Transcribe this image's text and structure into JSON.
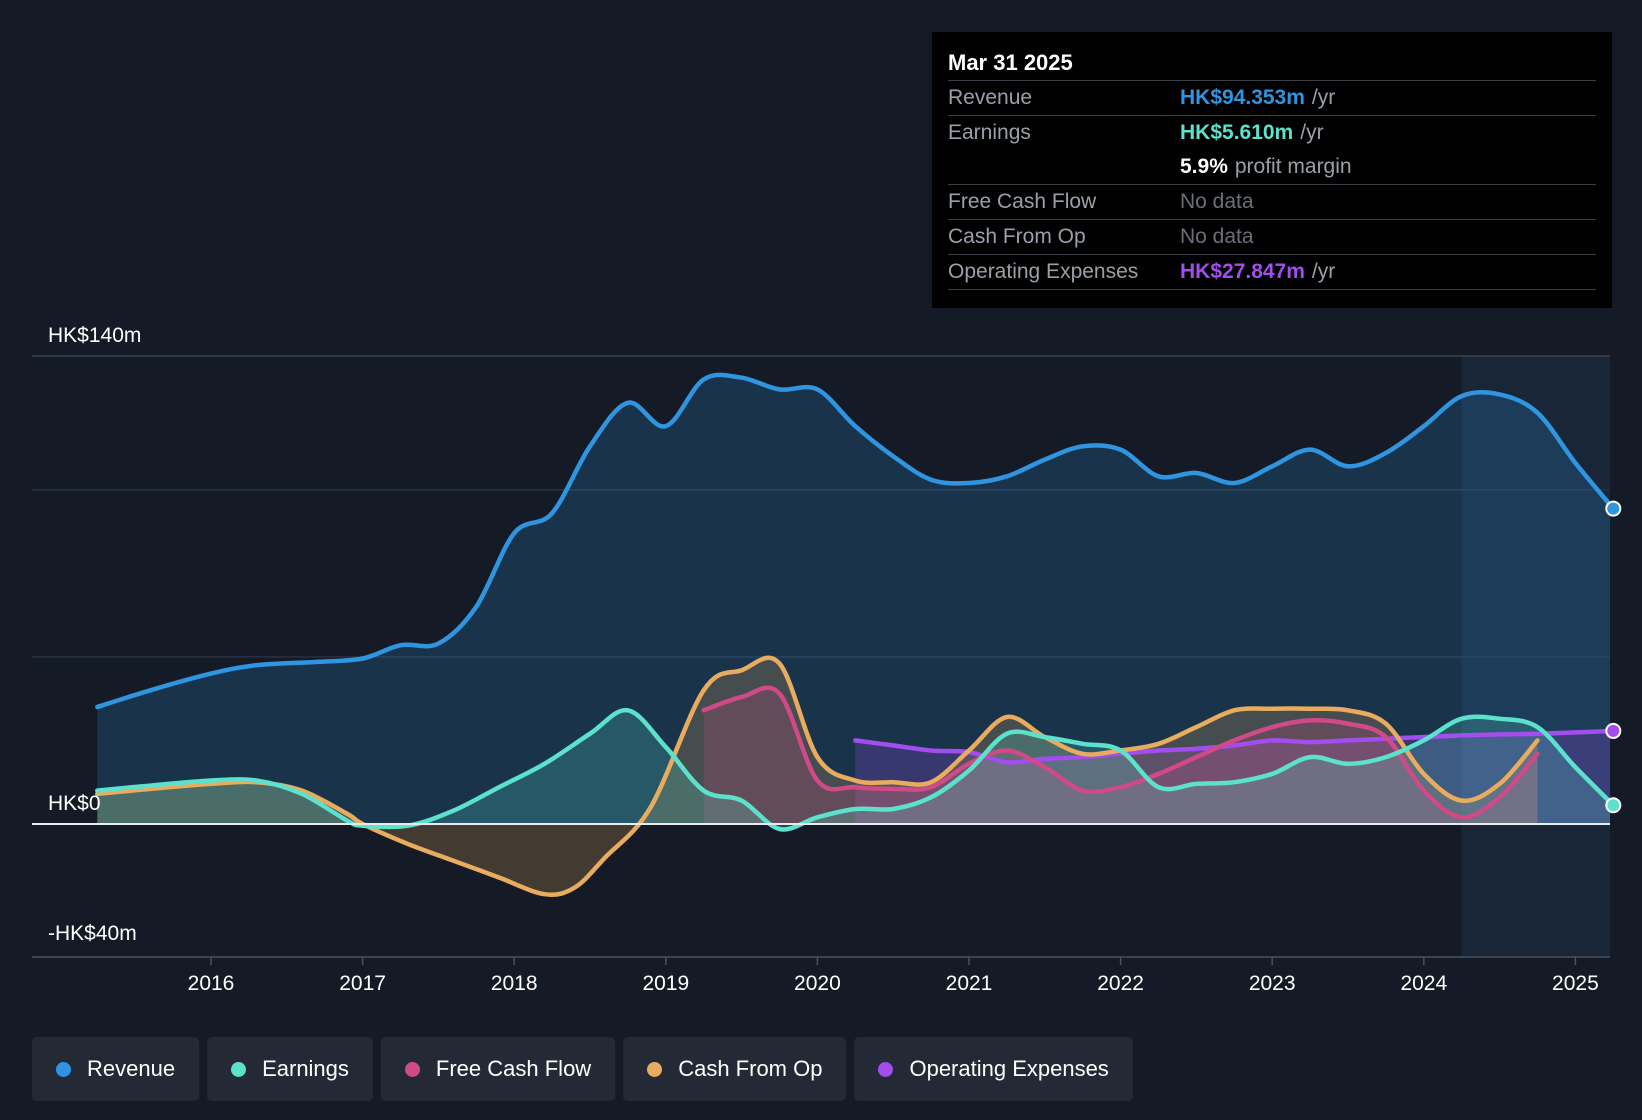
{
  "chart_data": {
    "type": "line",
    "y_unit": "HK$m",
    "ylim": [
      -40,
      140
    ],
    "y_tick_labels": [
      {
        "value": 140,
        "label": "HK$140m"
      },
      {
        "value": 0,
        "label": "HK$0"
      },
      {
        "value": -40,
        "label": "-HK$40m"
      }
    ],
    "gridlines": [
      140,
      100,
      50,
      0
    ],
    "xlim": [
      2015.0,
      2025.25
    ],
    "x_tick_labels": [
      "2016",
      "2017",
      "2018",
      "2019",
      "2020",
      "2021",
      "2022",
      "2023",
      "2024",
      "2025"
    ],
    "highlight_from": 2024.25,
    "series": [
      {
        "name": "Revenue",
        "color": "#2f95e0",
        "fill": true,
        "points": [
          [
            2015.25,
            35
          ],
          [
            2015.6,
            40
          ],
          [
            2016.0,
            45
          ],
          [
            2016.3,
            47.5
          ],
          [
            2016.7,
            48.5
          ],
          [
            2017.0,
            49.5
          ],
          [
            2017.25,
            53.5
          ],
          [
            2017.5,
            54
          ],
          [
            2017.75,
            65
          ],
          [
            2018.0,
            87
          ],
          [
            2018.25,
            93
          ],
          [
            2018.5,
            113
          ],
          [
            2018.75,
            126
          ],
          [
            2019.0,
            119
          ],
          [
            2019.25,
            133
          ],
          [
            2019.5,
            133.5
          ],
          [
            2019.75,
            130
          ],
          [
            2020.0,
            130
          ],
          [
            2020.25,
            119
          ],
          [
            2020.5,
            110
          ],
          [
            2020.75,
            103
          ],
          [
            2021.0,
            102
          ],
          [
            2021.25,
            104
          ],
          [
            2021.5,
            109
          ],
          [
            2021.75,
            113
          ],
          [
            2022.0,
            112
          ],
          [
            2022.25,
            104
          ],
          [
            2022.5,
            105
          ],
          [
            2022.75,
            102
          ],
          [
            2023.0,
            107
          ],
          [
            2023.25,
            112
          ],
          [
            2023.5,
            107
          ],
          [
            2023.75,
            111
          ],
          [
            2024.0,
            119
          ],
          [
            2024.25,
            128
          ],
          [
            2024.5,
            128.5
          ],
          [
            2024.75,
            123
          ],
          [
            2025.0,
            108
          ],
          [
            2025.25,
            94.353
          ]
        ]
      },
      {
        "name": "Earnings",
        "color": "#5ce1cd",
        "fill": true,
        "points": [
          [
            2015.25,
            10
          ],
          [
            2015.6,
            11.5
          ],
          [
            2016.0,
            13
          ],
          [
            2016.3,
            13
          ],
          [
            2016.6,
            9
          ],
          [
            2016.9,
            1
          ],
          [
            2017.0,
            -0.5
          ],
          [
            2017.3,
            -0.5
          ],
          [
            2017.6,
            4
          ],
          [
            2017.9,
            11
          ],
          [
            2018.2,
            18
          ],
          [
            2018.5,
            27
          ],
          [
            2018.75,
            34
          ],
          [
            2019.0,
            23
          ],
          [
            2019.25,
            10
          ],
          [
            2019.5,
            7
          ],
          [
            2019.75,
            -1.5
          ],
          [
            2020.0,
            2
          ],
          [
            2020.25,
            4.5
          ],
          [
            2020.5,
            4.5
          ],
          [
            2020.75,
            8
          ],
          [
            2021.0,
            16
          ],
          [
            2021.25,
            27
          ],
          [
            2021.5,
            26
          ],
          [
            2021.75,
            24
          ],
          [
            2022.0,
            22
          ],
          [
            2022.25,
            11
          ],
          [
            2022.5,
            12
          ],
          [
            2022.75,
            12.5
          ],
          [
            2023.0,
            15
          ],
          [
            2023.25,
            20
          ],
          [
            2023.5,
            18
          ],
          [
            2023.75,
            20
          ],
          [
            2024.0,
            25
          ],
          [
            2024.25,
            31.5
          ],
          [
            2024.5,
            31.5
          ],
          [
            2024.75,
            29
          ],
          [
            2025.0,
            17
          ],
          [
            2025.25,
            5.61
          ]
        ]
      },
      {
        "name": "Free Cash Flow",
        "color": "#cf4a86",
        "fill": true,
        "points": [
          [
            2019.25,
            34
          ],
          [
            2019.5,
            38
          ],
          [
            2019.75,
            39
          ],
          [
            2020.0,
            13
          ],
          [
            2020.25,
            11
          ],
          [
            2020.5,
            10.5
          ],
          [
            2020.75,
            11
          ],
          [
            2021.0,
            18
          ],
          [
            2021.25,
            22
          ],
          [
            2021.5,
            17
          ],
          [
            2021.75,
            10
          ],
          [
            2022.0,
            11
          ],
          [
            2022.25,
            15
          ],
          [
            2022.5,
            20
          ],
          [
            2022.75,
            25
          ],
          [
            2023.0,
            29
          ],
          [
            2023.25,
            31
          ],
          [
            2023.5,
            30
          ],
          [
            2023.75,
            26
          ],
          [
            2024.0,
            10
          ],
          [
            2024.25,
            2
          ],
          [
            2024.5,
            8
          ],
          [
            2024.75,
            21
          ]
        ]
      },
      {
        "name": "Cash From Op",
        "color": "#e9ac5e",
        "fill": true,
        "points": [
          [
            2015.25,
            9
          ],
          [
            2015.6,
            10.5
          ],
          [
            2016.0,
            12
          ],
          [
            2016.3,
            12.5
          ],
          [
            2016.6,
            10
          ],
          [
            2016.9,
            3
          ],
          [
            2017.0,
            0
          ],
          [
            2017.3,
            -6
          ],
          [
            2017.6,
            -11
          ],
          [
            2017.9,
            -16
          ],
          [
            2018.2,
            -21
          ],
          [
            2018.4,
            -19
          ],
          [
            2018.6,
            -10
          ],
          [
            2018.9,
            5
          ],
          [
            2019.25,
            40
          ],
          [
            2019.5,
            46
          ],
          [
            2019.75,
            48
          ],
          [
            2020.0,
            20
          ],
          [
            2020.25,
            13
          ],
          [
            2020.5,
            12.5
          ],
          [
            2020.75,
            12.5
          ],
          [
            2021.0,
            22
          ],
          [
            2021.25,
            32
          ],
          [
            2021.5,
            26
          ],
          [
            2021.75,
            21
          ],
          [
            2022.0,
            22
          ],
          [
            2022.25,
            24
          ],
          [
            2022.5,
            29
          ],
          [
            2022.75,
            34
          ],
          [
            2023.0,
            34.5
          ],
          [
            2023.25,
            34.5
          ],
          [
            2023.5,
            34
          ],
          [
            2023.75,
            30
          ],
          [
            2024.0,
            15
          ],
          [
            2024.25,
            7
          ],
          [
            2024.5,
            12
          ],
          [
            2024.75,
            25
          ]
        ]
      },
      {
        "name": "Operating Expenses",
        "color": "#a24ded",
        "fill": true,
        "points": [
          [
            2020.25,
            25
          ],
          [
            2020.5,
            23.5
          ],
          [
            2020.75,
            22
          ],
          [
            2021.0,
            21.5
          ],
          [
            2021.25,
            18.5
          ],
          [
            2021.5,
            19.5
          ],
          [
            2021.75,
            20
          ],
          [
            2022.0,
            21
          ],
          [
            2022.25,
            22
          ],
          [
            2022.5,
            22.5
          ],
          [
            2022.75,
            23.5
          ],
          [
            2023.0,
            25
          ],
          [
            2023.25,
            24.5
          ],
          [
            2023.5,
            25
          ],
          [
            2023.75,
            25.5
          ],
          [
            2024.0,
            26
          ],
          [
            2024.25,
            26.5
          ],
          [
            2024.5,
            26.8
          ],
          [
            2024.75,
            27
          ],
          [
            2025.0,
            27.4
          ],
          [
            2025.25,
            27.847
          ]
        ]
      }
    ],
    "end_markers": [
      "Revenue",
      "Earnings",
      "Operating Expenses"
    ]
  },
  "tooltip": {
    "date": "Mar 31 2025",
    "rows": [
      {
        "label": "Revenue",
        "value": "HK$94.353m",
        "unit": "/yr",
        "color": "#2f95e0"
      },
      {
        "label": "Earnings",
        "value": "HK$5.610m",
        "unit": "/yr",
        "color": "#5ce1cd"
      },
      {
        "label": "",
        "value": "5.9%",
        "unit": "profit margin",
        "color": "#ffffff"
      },
      {
        "label": "Free Cash Flow",
        "value": "No data",
        "unit": "",
        "color": ""
      },
      {
        "label": "Cash From Op",
        "value": "No data",
        "unit": "",
        "color": ""
      },
      {
        "label": "Operating Expenses",
        "value": "HK$27.847m",
        "unit": "/yr",
        "color": "#a24ded"
      }
    ]
  },
  "legend": [
    {
      "label": "Revenue",
      "color": "#2f95e0"
    },
    {
      "label": "Earnings",
      "color": "#5ce1cd"
    },
    {
      "label": "Free Cash Flow",
      "color": "#cf4a86"
    },
    {
      "label": "Cash From Op",
      "color": "#e9ac5e"
    },
    {
      "label": "Operating Expenses",
      "color": "#a24ded"
    }
  ]
}
